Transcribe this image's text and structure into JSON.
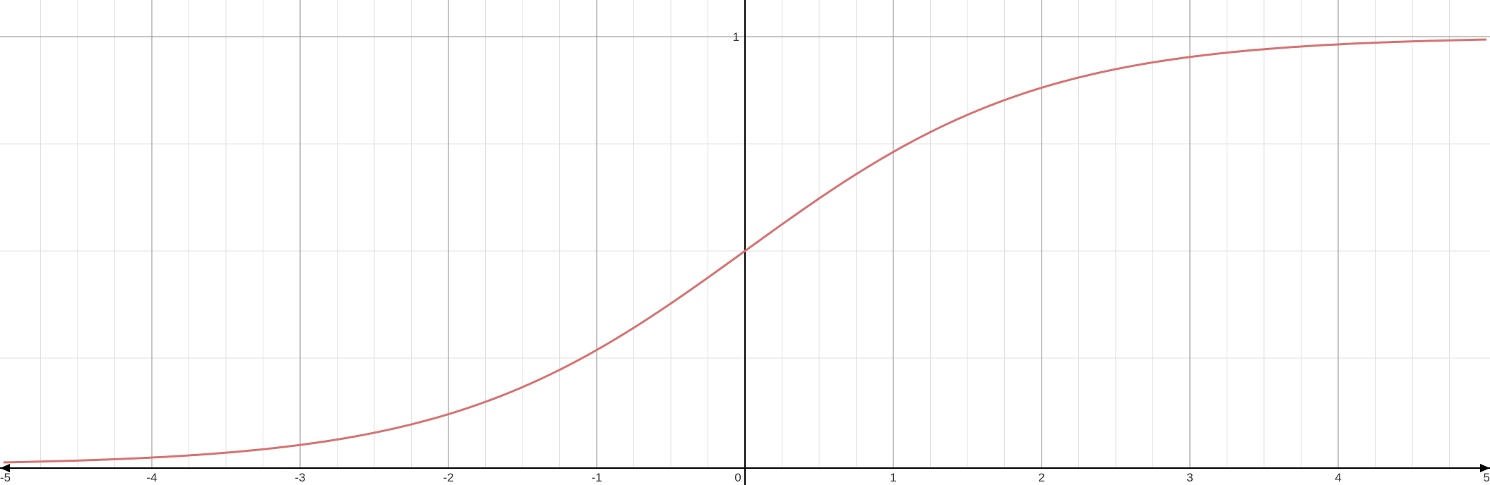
{
  "chart_data": {
    "type": "line",
    "title": "",
    "xlabel": "",
    "ylabel": "",
    "xlim": [
      -5,
      5
    ],
    "ylim": [
      -0.01,
      1.15
    ],
    "grid": true,
    "x_ticks": [
      -5,
      -4,
      -3,
      -2,
      -1,
      0,
      1,
      2,
      3,
      4,
      5
    ],
    "x_tick_labels": [
      "-5",
      "-4",
      "-3",
      "-2",
      "-1",
      "0",
      "1",
      "2",
      "3",
      "4",
      "5"
    ],
    "y_ticks": [
      1
    ],
    "y_tick_labels": [
      "1"
    ],
    "series": [
      {
        "color": "#d97272",
        "x": [
          -5,
          -4.5,
          -4,
          -3.5,
          -3,
          -2.5,
          -2,
          -1.5,
          -1,
          -0.5,
          0,
          0.5,
          1,
          1.5,
          2,
          2.5,
          3,
          3.5,
          4,
          4.5,
          5
        ],
        "y": [
          0.0067,
          0.011,
          0.018,
          0.0293,
          0.0474,
          0.0759,
          0.1192,
          0.1824,
          0.2689,
          0.3775,
          0.5,
          0.6225,
          0.7311,
          0.8176,
          0.8808,
          0.9241,
          0.9526,
          0.9707,
          0.982,
          0.989,
          0.9933
        ]
      }
    ]
  },
  "colors": {
    "curve": "#d97272",
    "major_grid": "#8c8c8c",
    "minor_grid": "#e0e0e0",
    "axis": "#000000"
  }
}
